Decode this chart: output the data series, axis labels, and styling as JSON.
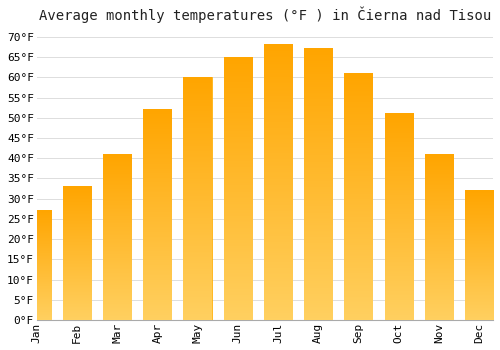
{
  "title": "Average monthly temperatures (°F ) in Čierna nad Tisou",
  "months": [
    "Jan",
    "Feb",
    "Mar",
    "Apr",
    "May",
    "Jun",
    "Jul",
    "Aug",
    "Sep",
    "Oct",
    "Nov",
    "Dec"
  ],
  "values": [
    27,
    33,
    41,
    52,
    60,
    65,
    68,
    67,
    61,
    51,
    41,
    32
  ],
  "bar_color_top": "#FFA500",
  "bar_color_mid": "#FFD700",
  "bar_edge_color": "#FFA500",
  "background_color": "#ffffff",
  "grid_color": "#dddddd",
  "yticks": [
    0,
    5,
    10,
    15,
    20,
    25,
    30,
    35,
    40,
    45,
    50,
    55,
    60,
    65,
    70
  ],
  "ylim": [
    0,
    72
  ],
  "title_fontsize": 10,
  "tick_fontsize": 8,
  "font_family": "monospace"
}
